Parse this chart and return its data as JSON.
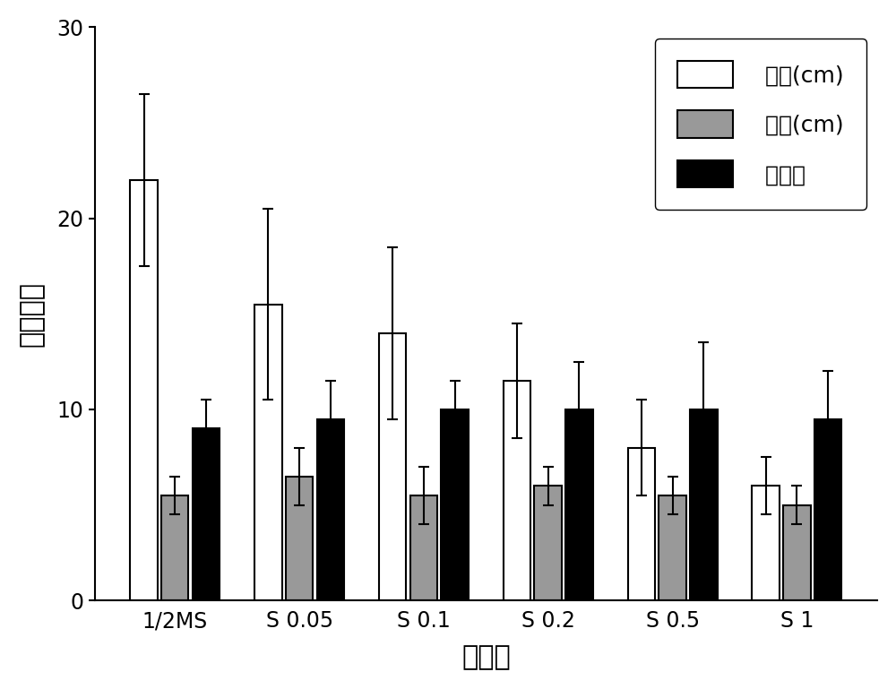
{
  "categories": [
    "1/2MS",
    "S 0.05",
    "S 0.1",
    "S 0.2",
    "S 0.5",
    "S 1"
  ],
  "seedling_length": [
    22.0,
    15.5,
    14.0,
    11.5,
    8.0,
    6.0
  ],
  "seedling_length_err": [
    4.5,
    5.0,
    4.5,
    3.0,
    2.5,
    1.5
  ],
  "root_length": [
    5.5,
    6.5,
    5.5,
    6.0,
    5.5,
    5.0
  ],
  "root_length_err": [
    1.0,
    1.5,
    1.5,
    1.0,
    1.0,
    1.0
  ],
  "root_number": [
    9.0,
    9.5,
    10.0,
    10.0,
    10.0,
    9.5
  ],
  "root_number_err": [
    1.5,
    2.0,
    1.5,
    2.5,
    3.5,
    2.5
  ],
  "bar_color_white": "#ffffff",
  "bar_color_gray": "#999999",
  "bar_color_black": "#000000",
  "legend_labels": [
    "苗长(cm)",
    "根长(cm)",
    "根数目"
  ],
  "xlabel": "培养基",
  "ylabel": "生长状况",
  "ylim": [
    0,
    30
  ],
  "yticks": [
    0,
    10,
    20,
    30
  ],
  "bar_width": 0.22,
  "edge_color": "#000000",
  "background_color": "#ffffff"
}
